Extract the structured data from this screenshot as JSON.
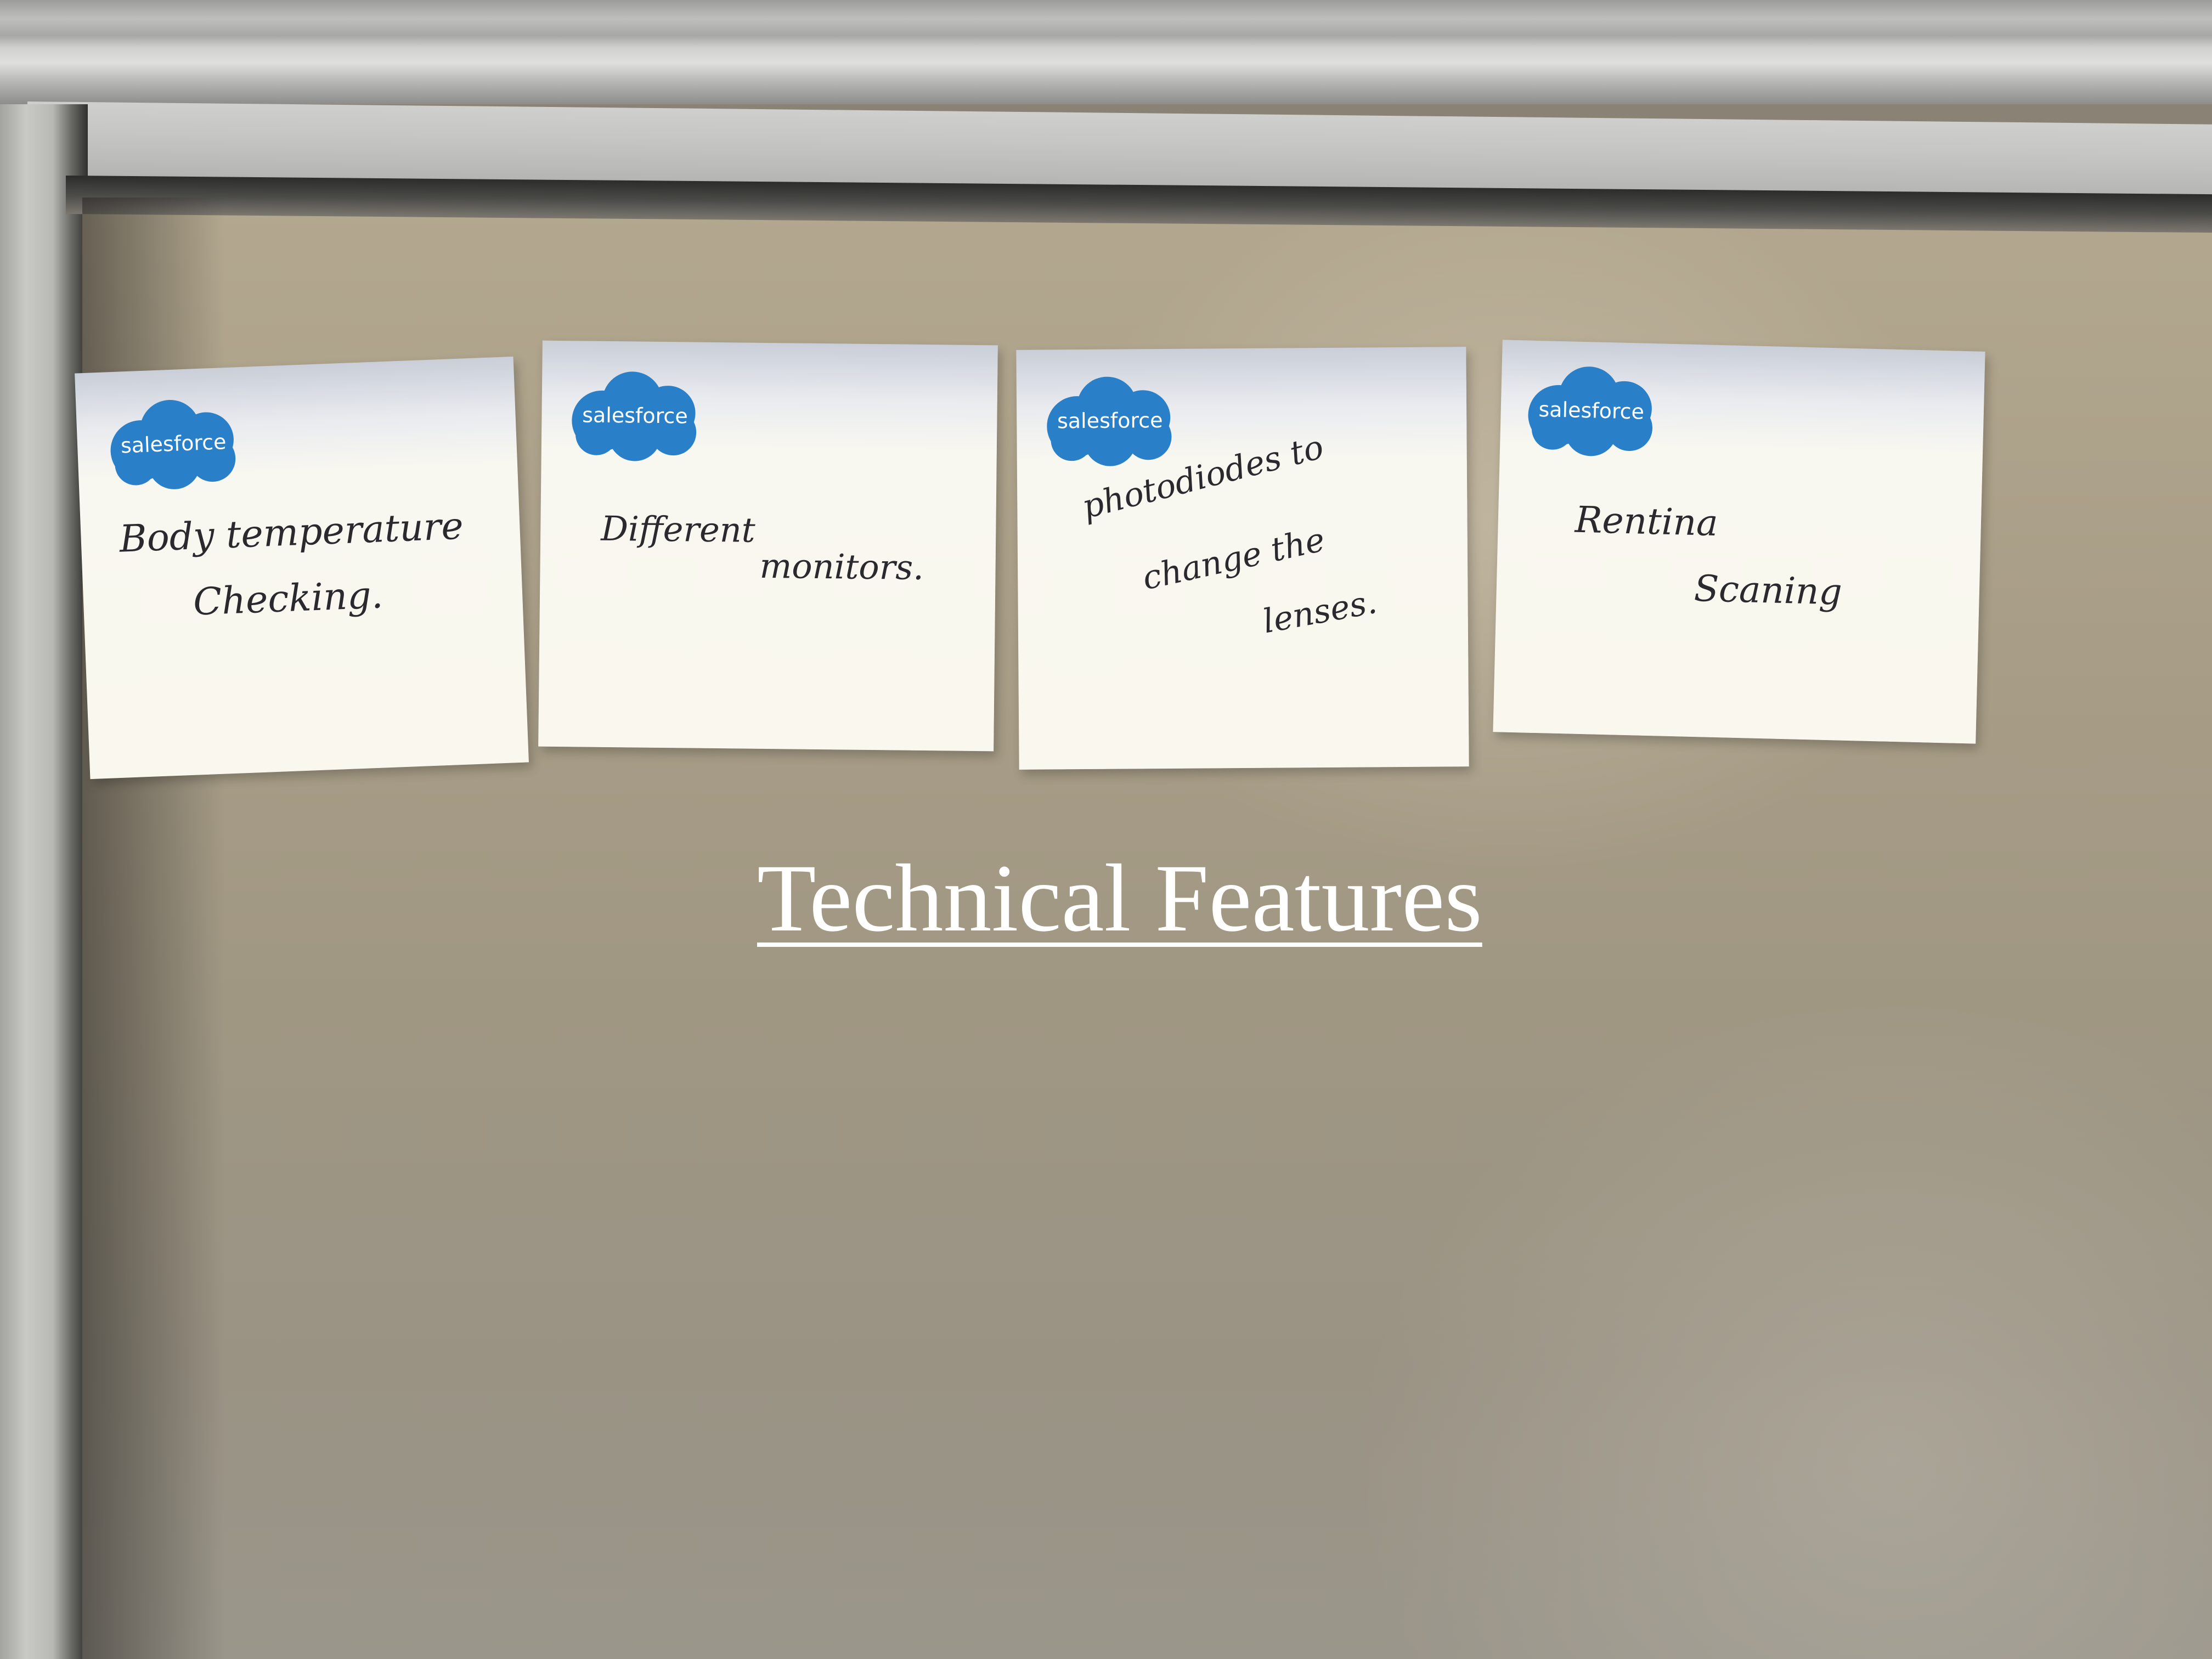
{
  "caption": "Technical Features",
  "notes": [
    {
      "brand": "salesforce",
      "line1": "Body temperature",
      "line2": "Checking."
    },
    {
      "brand": "salesforce",
      "line1": "Different",
      "line2": "monitors."
    },
    {
      "brand": "salesforce",
      "line1": "photodiodes to",
      "line2": "change the",
      "line3": "lenses."
    },
    {
      "brand": "salesforce",
      "line1": "Rentina",
      "line2": "Scaning"
    }
  ],
  "colors": {
    "brand_blue": "#2a7fc9",
    "note_paper": "#faf8ee",
    "board": "#a69c86",
    "caption": "#ffffff"
  }
}
